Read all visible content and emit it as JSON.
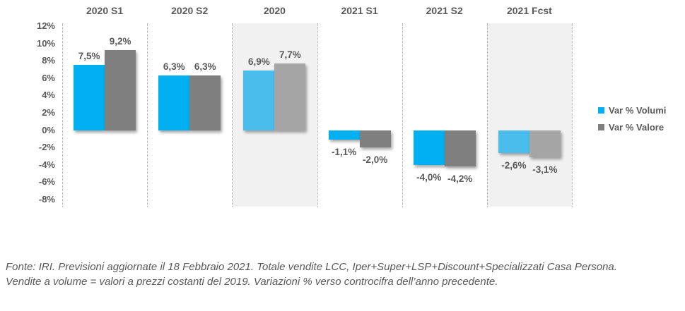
{
  "chart_data": {
    "type": "bar",
    "title": "",
    "categories": [
      "2020 S1",
      "2020 S2",
      "2020",
      "2021 S1",
      "2021 S2",
      "2021 Fcst"
    ],
    "series": [
      {
        "name": "Var % Volumi",
        "values": [
          7.5,
          6.3,
          6.9,
          -1.1,
          -4.0,
          -2.6
        ],
        "labels": [
          "7,5%",
          "6,3%",
          "6,9%",
          "-1,1%",
          "-4,0%",
          "-2,6%"
        ],
        "color": "#00b0f0",
        "muted_color": "#4abdec"
      },
      {
        "name": "Var % Valore",
        "values": [
          9.2,
          6.3,
          7.7,
          -2.0,
          -4.2,
          -3.1
        ],
        "labels": [
          "9,2%",
          "6,3%",
          "7,7%",
          "-2,0%",
          "-4,2%",
          "-3,1%"
        ],
        "color": "#7f7f7f",
        "muted_color": "#a5a5a5"
      }
    ],
    "muted_categories": [
      "2020",
      "2021 Fcst"
    ],
    "ylim": [
      -8,
      12
    ],
    "ytick_step": 2,
    "ytick_labels": [
      "12%",
      "10%",
      "8%",
      "6%",
      "4%",
      "2%",
      "0%",
      "-2%",
      "-4%",
      "-6%",
      "-8%"
    ],
    "grid": "vertical dotted column separators only",
    "legend_position": "right",
    "highlight_band_color": "#f1f1f1"
  },
  "legend": {
    "items": [
      {
        "label": "Var % Volumi",
        "color": "#00b0f0"
      },
      {
        "label": "Var % Valore",
        "color": "#7f7f7f"
      }
    ]
  },
  "footer": {
    "line1": "Fonte: IRI. Previsioni aggiornate il 18 Febbraio 2021. Totale vendite LCC, Iper+Super+LSP+Discount+Specializzati Casa Persona.",
    "line2": "Vendite a volume = valori a prezzi costanti del 2019. Variazioni % verso controcifra  dell’anno precedente."
  }
}
